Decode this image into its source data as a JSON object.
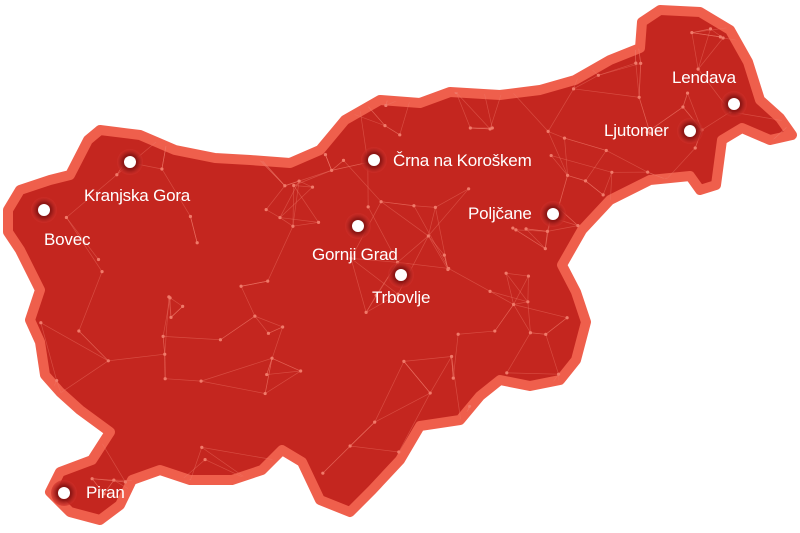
{
  "colors": {
    "land": "#c4261f",
    "border": "#ef5f4c",
    "network": "#f07a6a",
    "marker_ring": "#a81c1a",
    "marker_dot": "#ffffff"
  },
  "cities": [
    {
      "name": "Lendava",
      "icon": "map-pin-icon"
    },
    {
      "name": "Ljutomer",
      "icon": "map-pin-icon"
    },
    {
      "name": "Črna na Koroškem",
      "icon": "map-pin-icon"
    },
    {
      "name": "Kranjska Gora",
      "icon": "map-pin-icon"
    },
    {
      "name": "Bovec",
      "icon": "map-pin-icon"
    },
    {
      "name": "Poljčane",
      "icon": "map-pin-icon"
    },
    {
      "name": "Gornji Grad",
      "icon": "map-pin-icon"
    },
    {
      "name": "Trbovlje",
      "icon": "map-pin-icon"
    },
    {
      "name": "Piran",
      "icon": "map-pin-icon"
    }
  ]
}
